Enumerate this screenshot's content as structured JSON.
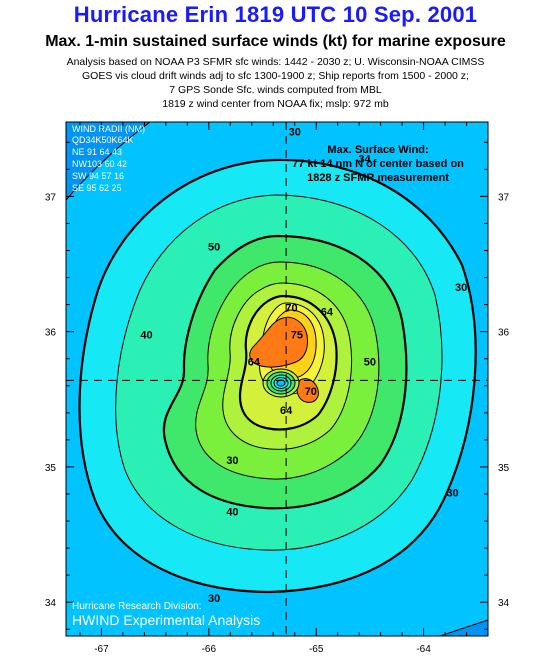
{
  "header": {
    "title": "Hurricane Erin 1819 UTC 10 Sep. 2001",
    "subtitle": "Max. 1-min sustained surface winds (kt) for marine exposure",
    "info_lines": [
      "Analysis based on NOAA P3 SFMR sfc winds: 1442 - 2030 z; U. Wisconsin-NOAA  CIMSS",
      "GOES vis cloud drift winds adj to sfc  1300-1900 z; Ship reports from  1500 - 2000 z;",
      "7 GPS Sonde Sfc. winds computed from MBL",
      "1819 z wind center from  NOAA fix;     mslp: 972 mb"
    ]
  },
  "wind_radii": {
    "title": "WIND RADII (NM)",
    "header": "QD34K50K64K",
    "rows": [
      "NE  91  64  43",
      "NW103  60  42",
      "SW  94  57  16",
      "SE  95  62  25"
    ]
  },
  "max_wind_box": {
    "lines": [
      "Max. Surface Wind:",
      "77 kt 14 nm N of center based on",
      "1828 z SFMR measurement"
    ]
  },
  "credit": {
    "division": "Hurricane Research Division:",
    "product": "HWIND Experimental Analysis"
  },
  "map": {
    "lon_range": [
      -67.33,
      -63.4
    ],
    "lat_range": [
      33.75,
      37.55
    ],
    "lon_ticks": [
      -67,
      -66,
      -65,
      -64
    ],
    "lat_ticks": [
      34,
      35,
      36,
      37
    ],
    "center": {
      "lon": -65.28,
      "lat": 35.64
    },
    "contour_labels": [
      {
        "text": "30",
        "lon": -65.2,
        "lat": 37.45
      },
      {
        "text": "34",
        "lon": -64.55,
        "lat": 37.25
      },
      {
        "text": "30",
        "lon": -63.65,
        "lat": 36.3
      },
      {
        "text": "40",
        "lon": -66.58,
        "lat": 35.95
      },
      {
        "text": "50",
        "lon": -65.95,
        "lat": 36.6
      },
      {
        "text": "50",
        "lon": -64.5,
        "lat": 35.75
      },
      {
        "text": "70",
        "lon": -65.23,
        "lat": 36.15
      },
      {
        "text": "64",
        "lon": -64.9,
        "lat": 36.12
      },
      {
        "text": "75",
        "lon": -65.18,
        "lat": 35.95
      },
      {
        "text": "64",
        "lon": -65.58,
        "lat": 35.75
      },
      {
        "text": "70",
        "lon": -65.05,
        "lat": 35.53
      },
      {
        "text": "64",
        "lon": -65.28,
        "lat": 35.39
      },
      {
        "text": "30",
        "lon": -65.78,
        "lat": 35.02
      },
      {
        "text": "40",
        "lon": -65.78,
        "lat": 34.64
      },
      {
        "text": "30",
        "lon": -65.95,
        "lat": 34.0
      },
      {
        "text": "30",
        "lon": -63.73,
        "lat": 34.78
      }
    ],
    "colors": {
      "c0": "#0094f5",
      "c30": "#00c3ff",
      "c34": "#17e8f5",
      "c40": "#2bf0b6",
      "c50": "#3fe86b",
      "c56": "#7aef3c",
      "c60": "#aef23e",
      "c64": "#d3f03a",
      "c66": "#f6f43a",
      "c70": "#ffd21a",
      "c75": "#ff7a14"
    }
  }
}
